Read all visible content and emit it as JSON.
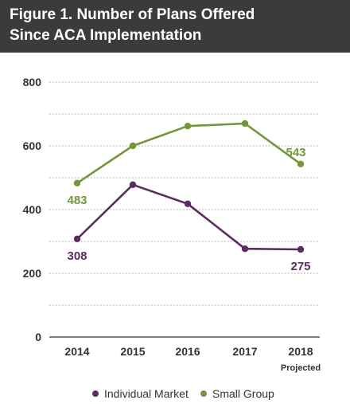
{
  "header": {
    "title_line1": "Figure 1. Number of Plans Offered",
    "title_line2": "Since ACA Implementation"
  },
  "chart_data": {
    "type": "line",
    "title": "Figure 1. Number of Plans Offered Since ACA Implementation",
    "xlabel": "",
    "ylabel": "",
    "categories": [
      "2014",
      "2015",
      "2016",
      "2017",
      "2018"
    ],
    "category_sublabels": [
      "",
      "",
      "",
      "",
      "Projected"
    ],
    "ylim": [
      0,
      800
    ],
    "yticks": [
      0,
      200,
      400,
      600,
      800
    ],
    "grid": true,
    "legend_position": "bottom",
    "series": [
      {
        "name": "Individual Market",
        "color": "#5b2c5f",
        "values": [
          308,
          478,
          418,
          277,
          275
        ],
        "labels": [
          "308",
          "",
          "",
          "",
          "275"
        ]
      },
      {
        "name": "Small Group",
        "color": "#74963a",
        "values": [
          483,
          600,
          662,
          670,
          543
        ],
        "labels": [
          "483",
          "",
          "",
          "",
          "543"
        ]
      }
    ]
  }
}
